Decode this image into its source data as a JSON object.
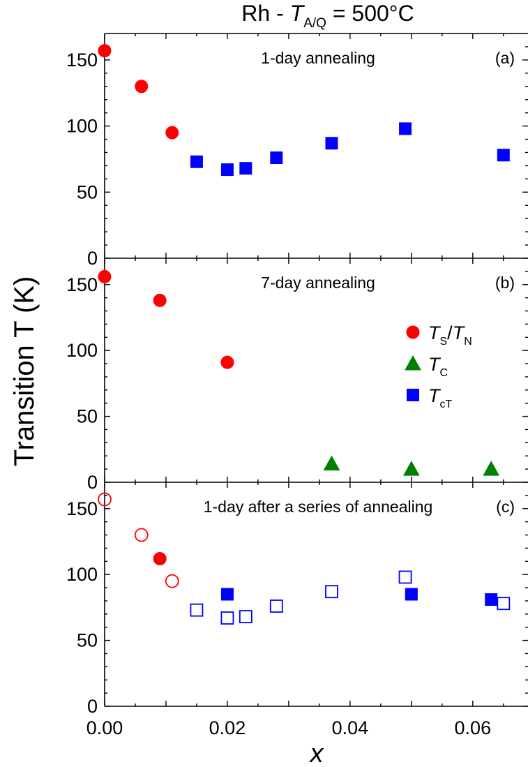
{
  "chart_data": {
    "type": "scatter",
    "title": "Rh - T_A/Q = 500°C",
    "title_parts": {
      "prefix": "Rh - ",
      "symbol": "T",
      "subscript": "A/Q",
      "suffix": " = 500°C"
    },
    "xlabel": "x",
    "ylabel": "Transition T (K)",
    "xlim": [
      0,
      0.069
    ],
    "ylim": [
      0,
      170
    ],
    "shared_x_axis": true,
    "x_ticks": [
      "0.00",
      "0.02",
      "0.04",
      "0.06"
    ],
    "y_ticks": [
      "0",
      "50",
      "100",
      "150"
    ],
    "legend": {
      "panel": "b",
      "placement": "right",
      "entries": [
        {
          "symbol": "T",
          "subscript": "S",
          "sep": "/",
          "symbol2": "T",
          "subscript2": "N",
          "marker": "circle",
          "color": "#ff0000"
        },
        {
          "symbol": "T",
          "subscript": "C",
          "marker": "triangle",
          "color": "#008000"
        },
        {
          "symbol": "T",
          "subscript": "cT",
          "marker": "square",
          "color": "#0000ff"
        }
      ]
    },
    "panels": [
      {
        "id": "a",
        "panel_label": "(a)",
        "annotation": "1-day annealing",
        "series": [
          {
            "marker": "circle",
            "color": "#ff0000",
            "filled": true,
            "points": [
              [
                0.0,
                157
              ],
              [
                0.006,
                130
              ],
              [
                0.011,
                95
              ]
            ]
          },
          {
            "marker": "square",
            "color": "#0000ff",
            "filled": true,
            "points": [
              [
                0.015,
                73
              ],
              [
                0.02,
                67
              ],
              [
                0.023,
                68
              ],
              [
                0.028,
                76
              ],
              [
                0.037,
                87
              ],
              [
                0.049,
                98
              ],
              [
                0.065,
                78
              ]
            ]
          }
        ]
      },
      {
        "id": "b",
        "panel_label": "(b)",
        "annotation": "7-day annealing",
        "series": [
          {
            "marker": "circle",
            "color": "#ff0000",
            "filled": true,
            "points": [
              [
                0.0,
                156
              ],
              [
                0.009,
                138
              ],
              [
                0.02,
                91
              ]
            ]
          },
          {
            "marker": "triangle",
            "color": "#008000",
            "filled": true,
            "points": [
              [
                0.037,
                14
              ],
              [
                0.05,
                10
              ],
              [
                0.063,
                10
              ]
            ]
          }
        ]
      },
      {
        "id": "c",
        "panel_label": "(c)",
        "annotation": "1-day after a series of annealing",
        "series": [
          {
            "marker": "circle",
            "color": "#ff0000",
            "filled": false,
            "points": [
              [
                0.0,
                157
              ],
              [
                0.006,
                130
              ],
              [
                0.011,
                95
              ]
            ]
          },
          {
            "marker": "circle",
            "color": "#ff0000",
            "filled": true,
            "points": [
              [
                0.009,
                112
              ]
            ]
          },
          {
            "marker": "square",
            "color": "#0000ff",
            "filled": false,
            "points": [
              [
                0.015,
                73
              ],
              [
                0.02,
                67
              ],
              [
                0.023,
                68
              ],
              [
                0.028,
                76
              ],
              [
                0.037,
                87
              ],
              [
                0.049,
                98
              ],
              [
                0.065,
                78
              ]
            ]
          },
          {
            "marker": "square",
            "color": "#0000ff",
            "filled": true,
            "points": [
              [
                0.02,
                85
              ],
              [
                0.05,
                85
              ],
              [
                0.063,
                81
              ]
            ]
          }
        ]
      }
    ]
  }
}
